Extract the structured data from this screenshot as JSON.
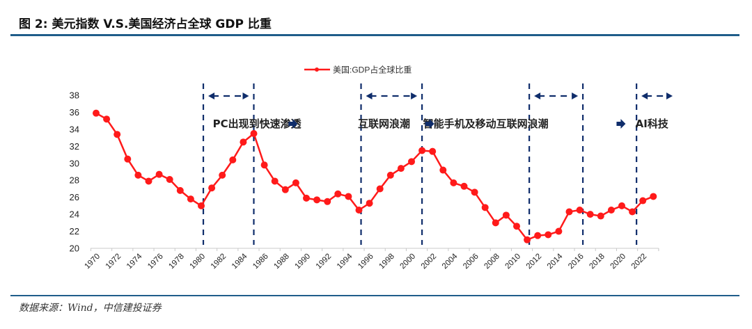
{
  "figure": {
    "title": "图 2:  美元指数 V.S.美国经济占全球 GDP 比重",
    "source": "数据来源：Wind，中信建投证券"
  },
  "colors": {
    "line": "#ff1a1a",
    "divider": "#1f5d8a",
    "annotation": "#0f2d6b",
    "axis": "#c8c8c8"
  },
  "chart_data": {
    "type": "line",
    "title": "",
    "xlabel": "",
    "ylabel": "",
    "ylim": [
      20,
      38
    ],
    "yticks": [
      "20",
      "22",
      "24",
      "26",
      "28",
      "30",
      "32",
      "34",
      "36",
      "38"
    ],
    "xtick_labels": [
      "1970",
      "1972",
      "1974",
      "1976",
      "1978",
      "1980",
      "1982",
      "1984",
      "1986",
      "1988",
      "1990",
      "1992",
      "1994",
      "1996",
      "1998",
      "2000",
      "2002",
      "2004",
      "2006",
      "2008",
      "2010",
      "2012",
      "2014",
      "2016",
      "2018",
      "2020",
      "2022"
    ],
    "legend_position": "top-center",
    "grid": false,
    "x": [
      1970,
      1971,
      1972,
      1973,
      1974,
      1975,
      1976,
      1977,
      1978,
      1979,
      1980,
      1981,
      1982,
      1983,
      1984,
      1985,
      1986,
      1987,
      1988,
      1989,
      1990,
      1991,
      1992,
      1993,
      1994,
      1995,
      1996,
      1997,
      1998,
      1999,
      2000,
      2001,
      2002,
      2003,
      2004,
      2005,
      2006,
      2007,
      2008,
      2009,
      2010,
      2011,
      2012,
      2013,
      2014,
      2015,
      2016,
      2017,
      2018,
      2019,
      2020,
      2021,
      2022,
      2023
    ],
    "series": [
      {
        "name": "美国:GDP占全球比重",
        "values": [
          35.9,
          35.2,
          33.4,
          30.5,
          28.6,
          27.9,
          28.7,
          28.1,
          26.8,
          25.8,
          25.0,
          27.1,
          28.6,
          30.4,
          32.5,
          33.5,
          29.8,
          27.9,
          26.9,
          27.7,
          25.9,
          25.7,
          25.5,
          26.4,
          26.1,
          24.5,
          25.3,
          27.0,
          28.6,
          29.4,
          30.2,
          31.5,
          31.4,
          29.2,
          27.7,
          27.3,
          26.6,
          24.8,
          23.0,
          23.9,
          22.6,
          21.0,
          21.5,
          21.6,
          22.0,
          24.3,
          24.5,
          24.0,
          23.8,
          24.5,
          25.0,
          24.3,
          25.6,
          26.1
        ]
      }
    ],
    "annotations": {
      "period_lines": [
        1980.2,
        1985.0,
        1995.2,
        2001.0,
        2011.2,
        2016.3,
        2021.4
      ],
      "labels": [
        {
          "text": "PC出现到快速渗透",
          "x": 1981.5
        },
        {
          "text": "互联网浪潮",
          "x": 1995.3
        },
        {
          "text": "智能手机及移动互联网浪潮",
          "x": 2001.5
        },
        {
          "text": "AI科技",
          "x": 2021.7
        }
      ],
      "arrow_spans": [
        [
          1980.2,
          1985.0
        ],
        [
          1995.2,
          2001.0
        ],
        [
          2011.2,
          2016.3
        ],
        [
          2021.4,
          2025.3
        ]
      ],
      "right_arrows": [
        1988.3,
        2001.3,
        2019.5
      ]
    }
  }
}
